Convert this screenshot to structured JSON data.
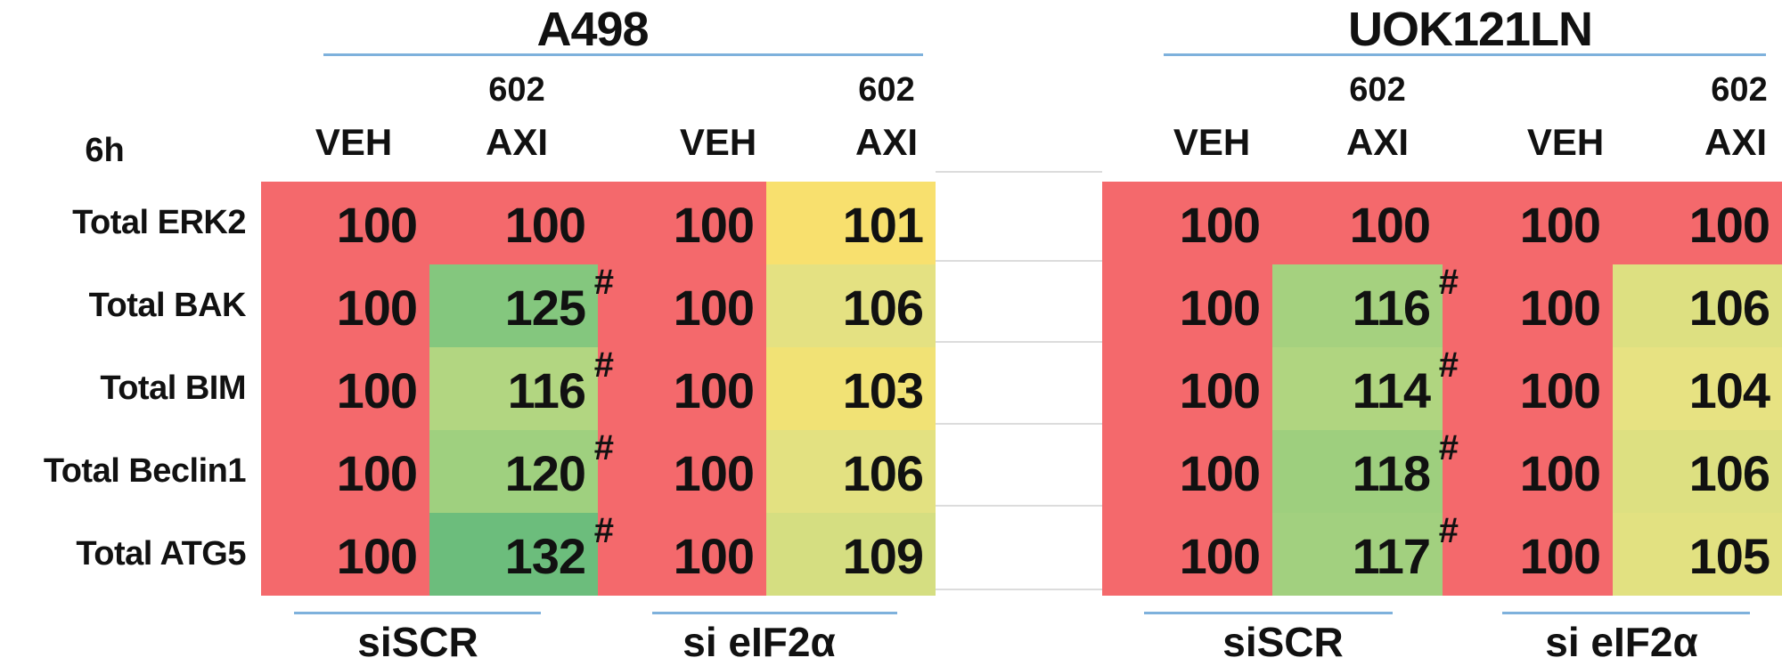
{
  "timepoint": "6h",
  "colors": {
    "low_red": "#F4696C",
    "rule_blue": "#7EB1DC",
    "spacer_grid_gray": "#DCDCDC",
    "text": "#111111"
  },
  "chart_data": {
    "type": "heatmap",
    "title": "6h",
    "timepoint": "6h",
    "significance_symbol": "#",
    "protein_rows": [
      "Total ERK2",
      "Total BAK",
      "Total BIM",
      "Total Beclin1",
      "Total ATG5"
    ],
    "treatment_columns": [
      {
        "top": "",
        "label": "VEH"
      },
      {
        "top": "602",
        "label": "AXI"
      },
      {
        "top": "",
        "label": "VEH"
      },
      {
        "top": "602",
        "label": "AXI"
      }
    ],
    "sirna_group_labels": [
      "siSCR",
      "si eIF2α"
    ],
    "value_scale_note": "percent of vehicle control (100 = baseline)",
    "tables": [
      {
        "cell_line": "A498",
        "values": [
          [
            100,
            100,
            100,
            101
          ],
          [
            100,
            125,
            100,
            106
          ],
          [
            100,
            116,
            100,
            103
          ],
          [
            100,
            120,
            100,
            106
          ],
          [
            100,
            132,
            100,
            109
          ]
        ],
        "significant": [
          [
            0,
            0,
            0,
            0
          ],
          [
            0,
            1,
            0,
            0
          ],
          [
            0,
            1,
            0,
            0
          ],
          [
            0,
            1,
            0,
            0
          ],
          [
            0,
            1,
            0,
            0
          ]
        ],
        "cell_colors": [
          [
            "#F4696C",
            "#F4696C",
            "#F4696C",
            "#F8E06E"
          ],
          [
            "#F4696C",
            "#84C77E",
            "#F4696C",
            "#E4E182"
          ],
          [
            "#F4696C",
            "#B2D681",
            "#F4696C",
            "#F1E275"
          ],
          [
            "#F4696C",
            "#9FD07F",
            "#F4696C",
            "#E3E181"
          ],
          [
            "#F4696C",
            "#6CBD7C",
            "#F4696C",
            "#D5DE81"
          ]
        ]
      },
      {
        "cell_line": "UOK121LN",
        "values": [
          [
            100,
            100,
            100,
            100
          ],
          [
            100,
            116,
            100,
            106
          ],
          [
            100,
            114,
            100,
            104
          ],
          [
            100,
            118,
            100,
            106
          ],
          [
            100,
            117,
            100,
            105
          ]
        ],
        "significant": [
          [
            0,
            0,
            0,
            0
          ],
          [
            0,
            1,
            0,
            0
          ],
          [
            0,
            1,
            0,
            0
          ],
          [
            0,
            1,
            0,
            0
          ],
          [
            0,
            1,
            0,
            0
          ]
        ],
        "cell_colors": [
          [
            "#F4696C",
            "#F4696C",
            "#F4696C",
            "#F4696C"
          ],
          [
            "#F4696C",
            "#A5D17F",
            "#F4696C",
            "#DDE081"
          ],
          [
            "#F4696C",
            "#B0D580",
            "#F4696C",
            "#E7E282"
          ],
          [
            "#F4696C",
            "#9ECF7E",
            "#F4696C",
            "#DDE081"
          ],
          [
            "#F4696C",
            "#A2D07F",
            "#F4696C",
            "#E2E181"
          ]
        ]
      }
    ]
  }
}
